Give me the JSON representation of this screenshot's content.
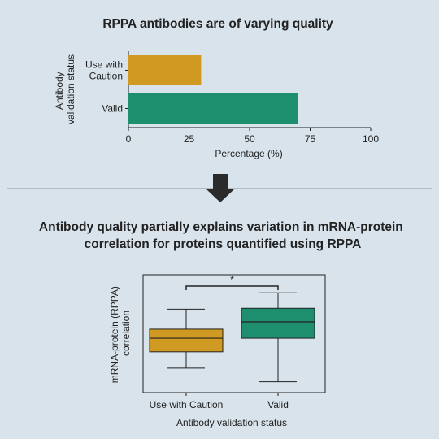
{
  "colors": {
    "background": "#d8e3eb",
    "caution": "#d09a22",
    "valid": "#1e8f6e",
    "axis": "#222222",
    "divider": "#8a949c",
    "arrow": "#2b2b2b"
  },
  "top_panel": {
    "title": "RPPA antibodies are of varying quality",
    "chart_data": {
      "type": "bar",
      "orientation": "horizontal",
      "categories": [
        "Use with Caution",
        "Valid"
      ],
      "values": [
        30,
        70
      ],
      "xlabel": "Percentage (%)",
      "ylabel_lines": [
        "Antibody",
        "validation status"
      ],
      "xlim": [
        0,
        100
      ],
      "xticks": [
        "0",
        "25",
        "50",
        "75",
        "100"
      ],
      "ytick_labels": [
        [
          "Use with",
          "Caution"
        ],
        [
          "Valid"
        ]
      ]
    }
  },
  "divider": {
    "arrow_icon": "down-arrow-icon"
  },
  "bottom_panel": {
    "title_lines": [
      "Antibody quality partially explains variation in mRNA-protein",
      "correlation for proteins quantified using RPPA"
    ],
    "chart_data": {
      "type": "box",
      "categories": [
        "Use with Caution",
        "Valid"
      ],
      "boxes": [
        {
          "whisker_low": 0.12,
          "q1": 0.3,
          "median": 0.45,
          "q3": 0.55,
          "whisker_high": 0.77
        },
        {
          "whisker_low": -0.03,
          "q1": 0.45,
          "median": 0.63,
          "q3": 0.78,
          "whisker_high": 0.95
        }
      ],
      "ylim": [
        -0.15,
        1.15
      ],
      "xlabel": "Antibody validation status",
      "ylabel_lines": [
        "mRNA-protein (RPPA)",
        "correlation"
      ],
      "significance": "*"
    }
  }
}
